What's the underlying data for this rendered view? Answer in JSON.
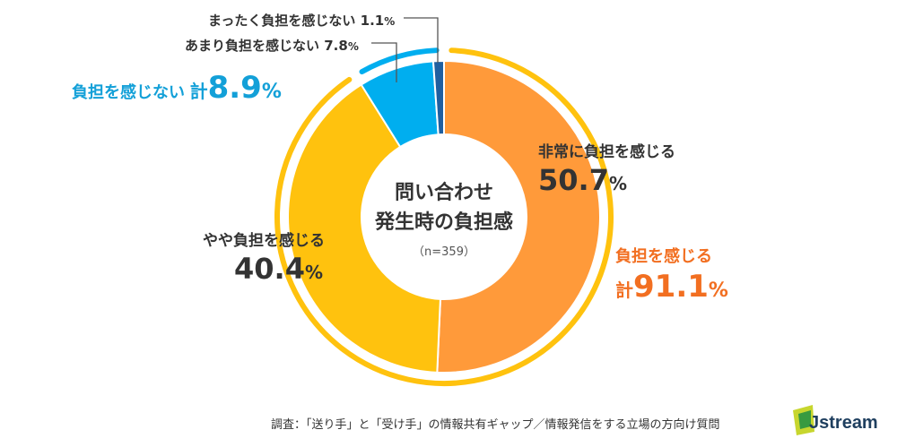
{
  "chart_data": {
    "type": "donut",
    "title_lines": [
      "問い合わせ",
      "発生時の負担感"
    ],
    "sample": "（n=359）",
    "slices": [
      {
        "name": "非常に負担を感じる",
        "value": 50.7,
        "color": "#ff9a3a"
      },
      {
        "name": "やや負担を感じる",
        "value": 40.4,
        "color": "#ffc20e"
      },
      {
        "name": "あまり負担を感じない",
        "value": 7.8,
        "color": "#00aeef"
      },
      {
        "name": "まったく負担を感じない",
        "value": 1.1,
        "color": "#1f5fa0"
      }
    ],
    "groups": [
      {
        "label": "負担を感じる",
        "prefix": "計",
        "value": 91.1,
        "color": "#ffc20e",
        "text_color": "#f26f21"
      },
      {
        "label": "負担を感じない",
        "prefix": "計",
        "value": 8.9,
        "color": "#00aeef",
        "text_color": "#13a0d8"
      }
    ]
  },
  "labels": {
    "strong": {
      "name": "非常に負担を感じる",
      "value": "50.7"
    },
    "some": {
      "name": "やや負担を感じる",
      "value": "40.4"
    },
    "little": {
      "name": "あまり負担を感じない",
      "value": "7.8"
    },
    "none": {
      "name": "まったく負担を感じない",
      "value": "1.1"
    },
    "group_feel": {
      "label": "負担を感じる",
      "prefix": "計",
      "value": "91.1"
    },
    "group_nofeel": {
      "label": "負担を感じない",
      "prefix": "計",
      "value": "8.9"
    },
    "percent": "%"
  },
  "source": "調査：「送り手」と「受け手」の情報共有ギャップ／情報発信をする立場の方向け質問",
  "logo": {
    "text": "Jstream",
    "colors": [
      "#c7d62e",
      "#1f8f43"
    ]
  }
}
